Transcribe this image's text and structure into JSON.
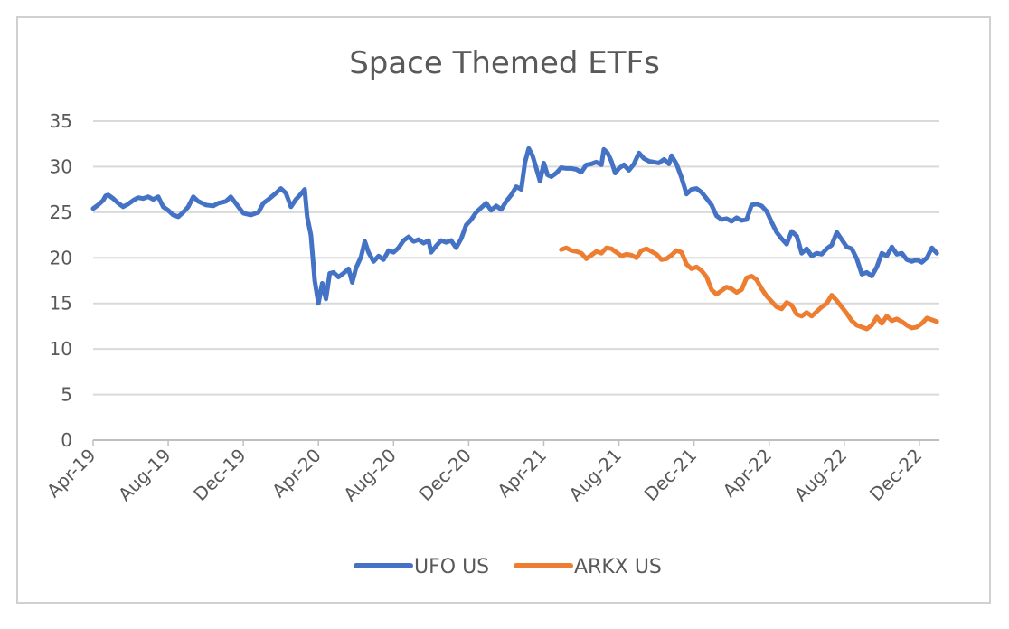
{
  "chart_data": {
    "type": "line",
    "title": "Space Themed ETFs",
    "xlabel": "",
    "ylabel": "",
    "ylim": [
      0,
      35
    ],
    "yticks": [
      0,
      5,
      10,
      15,
      20,
      25,
      30,
      35
    ],
    "x_tick_labels": [
      "Apr-19",
      "Aug-19",
      "Dec-19",
      "Apr-20",
      "Aug-20",
      "Dec-20",
      "Apr-21",
      "Aug-21",
      "Dec-21",
      "Apr-22",
      "Aug-22",
      "Dec-22"
    ],
    "grid": "horizontal",
    "legend_position": "bottom",
    "x_unit": "month",
    "series": [
      {
        "name": "UFO US",
        "color": "#4472C4",
        "points": [
          [
            0.0,
            25.4
          ],
          [
            0.2,
            25.8
          ],
          [
            0.4,
            26.3
          ],
          [
            0.5,
            26.8
          ],
          [
            0.6,
            26.9
          ],
          [
            0.8,
            26.5
          ],
          [
            1.0,
            26.0
          ],
          [
            1.2,
            25.6
          ],
          [
            1.4,
            25.9
          ],
          [
            1.6,
            26.3
          ],
          [
            1.8,
            26.6
          ],
          [
            2.0,
            26.5
          ],
          [
            2.2,
            26.7
          ],
          [
            2.4,
            26.4
          ],
          [
            2.6,
            26.7
          ],
          [
            2.8,
            25.6
          ],
          [
            3.0,
            25.2
          ],
          [
            3.2,
            24.7
          ],
          [
            3.4,
            24.5
          ],
          [
            3.6,
            25.0
          ],
          [
            3.8,
            25.6
          ],
          [
            4.0,
            26.7
          ],
          [
            4.2,
            26.2
          ],
          [
            4.5,
            25.8
          ],
          [
            4.8,
            25.7
          ],
          [
            5.0,
            26.0
          ],
          [
            5.3,
            26.2
          ],
          [
            5.5,
            26.7
          ],
          [
            5.8,
            25.6
          ],
          [
            6.0,
            24.9
          ],
          [
            6.3,
            24.7
          ],
          [
            6.6,
            25.0
          ],
          [
            6.8,
            26.0
          ],
          [
            7.0,
            26.4
          ],
          [
            7.3,
            27.1
          ],
          [
            7.5,
            27.6
          ],
          [
            7.7,
            27.1
          ],
          [
            7.9,
            25.6
          ],
          [
            8.1,
            26.4
          ],
          [
            8.3,
            27.0
          ],
          [
            8.45,
            27.5
          ],
          [
            8.55,
            24.5
          ],
          [
            8.7,
            22.5
          ],
          [
            8.85,
            17.5
          ],
          [
            9.0,
            15.0
          ],
          [
            9.15,
            17.2
          ],
          [
            9.3,
            15.5
          ],
          [
            9.45,
            18.3
          ],
          [
            9.6,
            18.4
          ],
          [
            9.8,
            17.9
          ],
          [
            10.0,
            18.3
          ],
          [
            10.2,
            18.8
          ],
          [
            10.35,
            17.3
          ],
          [
            10.5,
            18.9
          ],
          [
            10.7,
            20.1
          ],
          [
            10.85,
            21.8
          ],
          [
            11.0,
            20.6
          ],
          [
            11.2,
            19.6
          ],
          [
            11.4,
            20.2
          ],
          [
            11.6,
            19.8
          ],
          [
            11.8,
            20.8
          ],
          [
            12.0,
            20.6
          ],
          [
            12.2,
            21.1
          ],
          [
            12.4,
            21.9
          ],
          [
            12.6,
            22.3
          ],
          [
            12.8,
            21.8
          ],
          [
            13.0,
            22.0
          ],
          [
            13.2,
            21.6
          ],
          [
            13.4,
            21.9
          ],
          [
            13.5,
            20.6
          ],
          [
            13.7,
            21.3
          ],
          [
            13.9,
            21.9
          ],
          [
            14.1,
            21.7
          ],
          [
            14.3,
            21.9
          ],
          [
            14.5,
            21.1
          ],
          [
            14.7,
            22.1
          ],
          [
            14.9,
            23.6
          ],
          [
            15.1,
            24.2
          ],
          [
            15.3,
            25.0
          ],
          [
            15.5,
            25.5
          ],
          [
            15.7,
            26.0
          ],
          [
            15.9,
            25.2
          ],
          [
            16.1,
            25.7
          ],
          [
            16.3,
            25.3
          ],
          [
            16.5,
            26.2
          ],
          [
            16.7,
            26.9
          ],
          [
            16.9,
            27.8
          ],
          [
            17.1,
            27.5
          ],
          [
            17.25,
            30.5
          ],
          [
            17.4,
            32.0
          ],
          [
            17.55,
            31.2
          ],
          [
            17.7,
            29.8
          ],
          [
            17.85,
            28.4
          ],
          [
            18.0,
            30.4
          ],
          [
            18.15,
            29.1
          ],
          [
            18.3,
            28.9
          ],
          [
            18.5,
            29.3
          ],
          [
            18.7,
            29.9
          ],
          [
            18.9,
            29.8
          ],
          [
            19.1,
            29.8
          ],
          [
            19.3,
            29.7
          ],
          [
            19.5,
            29.4
          ],
          [
            19.7,
            30.2
          ],
          [
            19.9,
            30.3
          ],
          [
            20.1,
            30.5
          ],
          [
            20.3,
            30.2
          ],
          [
            20.4,
            31.9
          ],
          [
            20.55,
            31.5
          ],
          [
            20.7,
            30.6
          ],
          [
            20.85,
            29.3
          ],
          [
            21.0,
            29.8
          ],
          [
            21.2,
            30.2
          ],
          [
            21.4,
            29.6
          ],
          [
            21.6,
            30.3
          ],
          [
            21.8,
            31.5
          ],
          [
            22.0,
            30.9
          ],
          [
            22.2,
            30.6
          ],
          [
            22.4,
            30.5
          ],
          [
            22.6,
            30.4
          ],
          [
            22.8,
            30.8
          ],
          [
            23.0,
            30.3
          ],
          [
            23.1,
            31.2
          ],
          [
            23.3,
            30.3
          ],
          [
            23.5,
            28.8
          ],
          [
            23.7,
            27.0
          ],
          [
            23.9,
            27.5
          ],
          [
            24.1,
            27.6
          ],
          [
            24.3,
            27.2
          ],
          [
            24.5,
            26.5
          ],
          [
            24.7,
            25.8
          ],
          [
            24.9,
            24.6
          ],
          [
            25.1,
            24.2
          ],
          [
            25.3,
            24.3
          ],
          [
            25.5,
            24.0
          ],
          [
            25.7,
            24.4
          ],
          [
            25.9,
            24.1
          ],
          [
            26.1,
            24.2
          ],
          [
            26.3,
            25.8
          ],
          [
            26.5,
            25.9
          ],
          [
            26.7,
            25.7
          ],
          [
            26.9,
            25.1
          ],
          [
            27.1,
            23.9
          ],
          [
            27.3,
            22.8
          ],
          [
            27.5,
            22.1
          ],
          [
            27.7,
            21.5
          ],
          [
            27.9,
            22.9
          ],
          [
            28.1,
            22.4
          ],
          [
            28.3,
            20.5
          ],
          [
            28.5,
            21.0
          ],
          [
            28.7,
            20.2
          ],
          [
            28.9,
            20.5
          ],
          [
            29.1,
            20.4
          ],
          [
            29.3,
            21.0
          ],
          [
            29.5,
            21.4
          ],
          [
            29.7,
            22.8
          ],
          [
            29.9,
            22.0
          ],
          [
            30.1,
            21.2
          ],
          [
            30.3,
            21.0
          ],
          [
            30.5,
            19.9
          ],
          [
            30.7,
            18.2
          ],
          [
            30.9,
            18.4
          ],
          [
            31.1,
            18.0
          ],
          [
            31.3,
            19.0
          ],
          [
            31.5,
            20.5
          ],
          [
            31.7,
            20.2
          ],
          [
            31.9,
            21.2
          ],
          [
            32.1,
            20.4
          ],
          [
            32.3,
            20.5
          ],
          [
            32.5,
            19.8
          ],
          [
            32.7,
            19.6
          ],
          [
            32.9,
            19.8
          ],
          [
            33.1,
            19.5
          ],
          [
            33.3,
            20.0
          ],
          [
            33.5,
            21.1
          ],
          [
            33.7,
            20.5
          ]
        ]
      },
      {
        "name": "ARKX US",
        "color": "#ED7D31",
        "points": [
          [
            18.7,
            20.9
          ],
          [
            18.9,
            21.1
          ],
          [
            19.1,
            20.8
          ],
          [
            19.3,
            20.7
          ],
          [
            19.5,
            20.5
          ],
          [
            19.7,
            19.9
          ],
          [
            19.9,
            20.3
          ],
          [
            20.1,
            20.7
          ],
          [
            20.3,
            20.5
          ],
          [
            20.5,
            21.1
          ],
          [
            20.7,
            21.0
          ],
          [
            20.9,
            20.6
          ],
          [
            21.1,
            20.2
          ],
          [
            21.3,
            20.4
          ],
          [
            21.5,
            20.3
          ],
          [
            21.7,
            20.0
          ],
          [
            21.9,
            20.8
          ],
          [
            22.1,
            21.0
          ],
          [
            22.3,
            20.7
          ],
          [
            22.5,
            20.4
          ],
          [
            22.7,
            19.8
          ],
          [
            22.9,
            19.9
          ],
          [
            23.1,
            20.3
          ],
          [
            23.3,
            20.8
          ],
          [
            23.5,
            20.6
          ],
          [
            23.7,
            19.3
          ],
          [
            23.9,
            18.8
          ],
          [
            24.1,
            19.0
          ],
          [
            24.3,
            18.6
          ],
          [
            24.5,
            17.9
          ],
          [
            24.7,
            16.5
          ],
          [
            24.9,
            16.0
          ],
          [
            25.1,
            16.4
          ],
          [
            25.3,
            16.8
          ],
          [
            25.5,
            16.6
          ],
          [
            25.7,
            16.2
          ],
          [
            25.9,
            16.5
          ],
          [
            26.1,
            17.8
          ],
          [
            26.3,
            18.0
          ],
          [
            26.5,
            17.6
          ],
          [
            26.7,
            16.6
          ],
          [
            26.9,
            15.8
          ],
          [
            27.1,
            15.2
          ],
          [
            27.3,
            14.6
          ],
          [
            27.5,
            14.4
          ],
          [
            27.7,
            15.1
          ],
          [
            27.9,
            14.8
          ],
          [
            28.1,
            13.8
          ],
          [
            28.3,
            13.6
          ],
          [
            28.5,
            14.0
          ],
          [
            28.7,
            13.6
          ],
          [
            28.9,
            14.1
          ],
          [
            29.1,
            14.6
          ],
          [
            29.3,
            15.0
          ],
          [
            29.5,
            15.9
          ],
          [
            29.7,
            15.3
          ],
          [
            29.9,
            14.6
          ],
          [
            30.1,
            13.9
          ],
          [
            30.3,
            13.1
          ],
          [
            30.5,
            12.6
          ],
          [
            30.7,
            12.4
          ],
          [
            30.9,
            12.2
          ],
          [
            31.1,
            12.6
          ],
          [
            31.3,
            13.5
          ],
          [
            31.5,
            12.8
          ],
          [
            31.7,
            13.6
          ],
          [
            31.9,
            13.1
          ],
          [
            32.1,
            13.3
          ],
          [
            32.3,
            13.0
          ],
          [
            32.5,
            12.6
          ],
          [
            32.7,
            12.3
          ],
          [
            32.9,
            12.4
          ],
          [
            33.1,
            12.8
          ],
          [
            33.3,
            13.4
          ],
          [
            33.5,
            13.2
          ],
          [
            33.7,
            13.0
          ]
        ]
      }
    ]
  }
}
